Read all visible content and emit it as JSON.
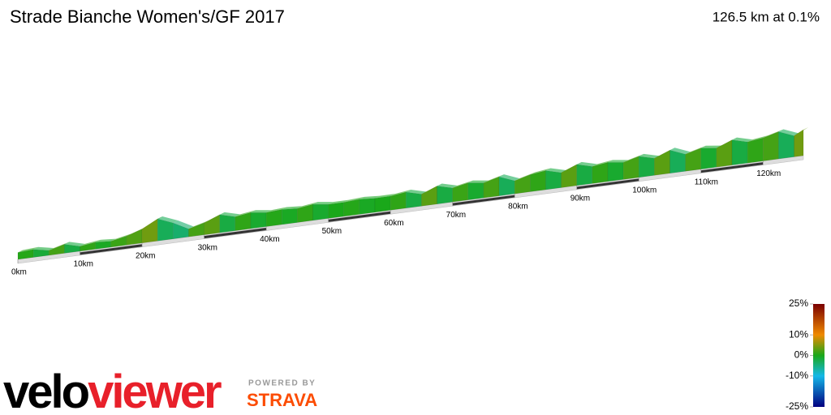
{
  "chart_data": {
    "type": "profile",
    "title": "Strade Bianche Women's/GF 2017",
    "subtitle": "126.5 km at 0.1%",
    "xlim": [
      0,
      126.5
    ],
    "xticks": [
      {
        "value": 0,
        "label": "0km"
      },
      {
        "value": 10,
        "label": "10km"
      },
      {
        "value": 20,
        "label": "20km"
      },
      {
        "value": 30,
        "label": "30km"
      },
      {
        "value": 40,
        "label": "40km"
      },
      {
        "value": 50,
        "label": "50km"
      },
      {
        "value": 60,
        "label": "60km"
      },
      {
        "value": 70,
        "label": "70km"
      },
      {
        "value": 80,
        "label": "80km"
      },
      {
        "value": 90,
        "label": "90km"
      },
      {
        "value": 100,
        "label": "100km"
      },
      {
        "value": 110,
        "label": "110km"
      },
      {
        "value": 120,
        "label": "120km"
      }
    ],
    "x": [
      0,
      2.5,
      5,
      7.5,
      10,
      12.5,
      15,
      17.5,
      20,
      22.5,
      25,
      27.5,
      30,
      32.5,
      35,
      37.5,
      40,
      42.5,
      45,
      47.5,
      50,
      52.5,
      55,
      57.5,
      60,
      62.5,
      65,
      67.5,
      70,
      72.5,
      75,
      77.5,
      80,
      82.5,
      85,
      87.5,
      90,
      92.5,
      95,
      97.5,
      100,
      102.5,
      105,
      107.5,
      110,
      112.5,
      115,
      117.5,
      120,
      122.5,
      125
    ],
    "values": [
      0.5,
      -1.5,
      2,
      -2,
      1,
      -0.5,
      1.5,
      2.5,
      4,
      -3,
      -4,
      2,
      3,
      -2,
      1,
      -1,
      0.5,
      -0.5,
      1,
      -1,
      0,
      0.5,
      -0.5,
      0,
      1,
      -2,
      3,
      -2,
      1.5,
      -1,
      2,
      -3,
      2,
      1,
      -2,
      3,
      -2,
      1,
      -1,
      2,
      -2,
      3,
      -3,
      2,
      -1,
      3,
      -2,
      1,
      2,
      -3,
      4
    ],
    "colorbar": {
      "ticks": [
        {
          "value": 25,
          "label": "25%"
        },
        {
          "value": 10,
          "label": "10%"
        },
        {
          "value": 0,
          "label": "0%"
        },
        {
          "value": -10,
          "label": "-10%"
        },
        {
          "value": -25,
          "label": "-25%"
        }
      ],
      "colors": [
        "#7a0000",
        "#f08a00",
        "#1aa81a",
        "#14b8e8",
        "#000080"
      ]
    },
    "logo": {
      "part1": "velo",
      "part2": "viewer",
      "powered": "POWERED BY",
      "brand": "STRAVA"
    }
  }
}
